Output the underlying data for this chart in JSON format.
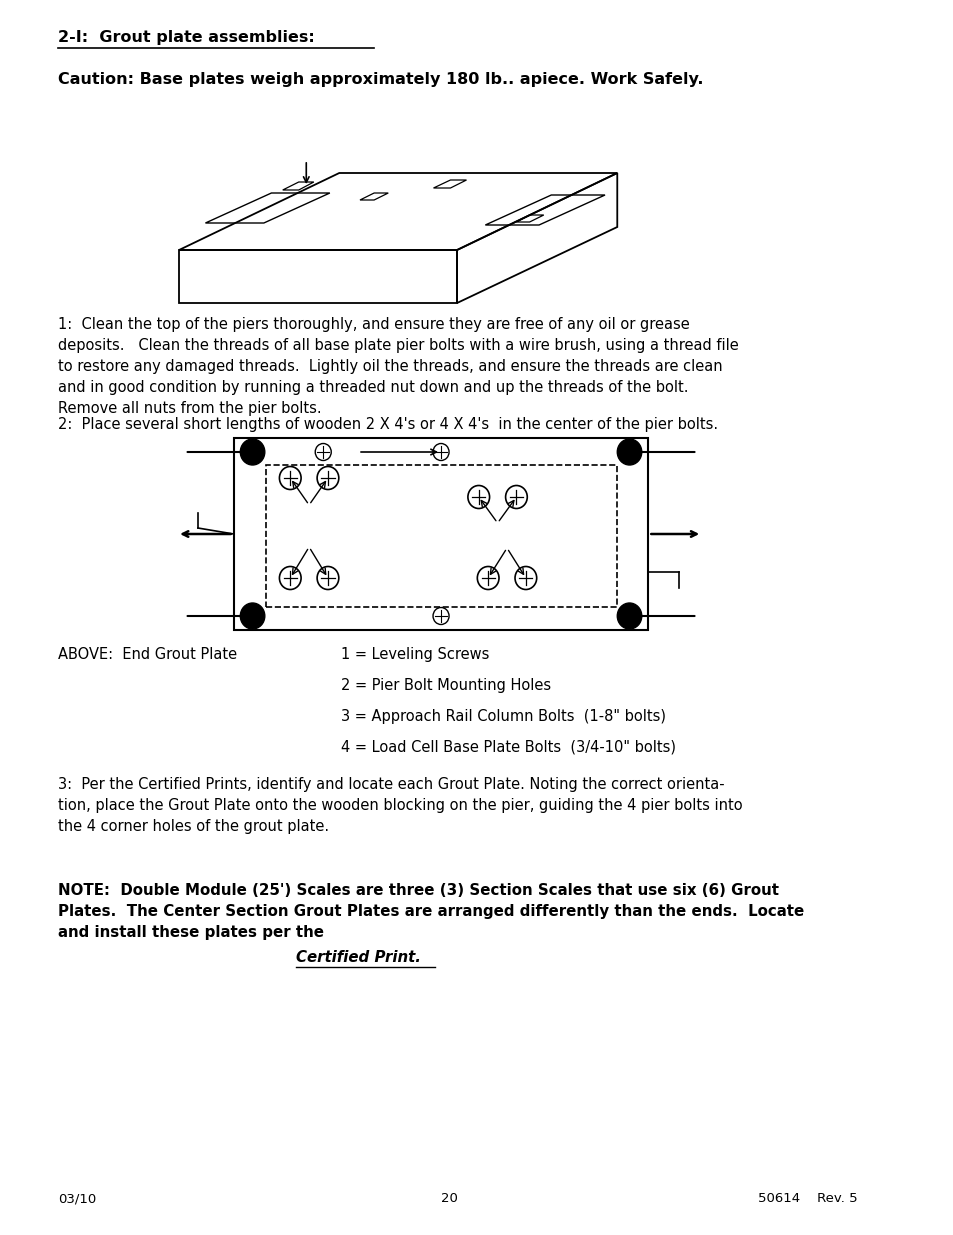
{
  "bg_color": "#ffffff",
  "text_color": "#000000",
  "heading1": "2-I:  Grout plate assemblies:",
  "caution": "Caution: Base plates weigh approximately 180 lb.. apiece. Work Safely.",
  "para1": "1:  Clean the top of the piers thoroughly, and ensure they are free of any oil or grease\ndeposits.   Clean the threads of all base plate pier bolts with a wire brush, using a thread file\nto restore any damaged threads.  Lightly oil the threads, and ensure the threads are clean\nand in good condition by running a threaded nut down and up the threads of the bolt.\nRemove all nuts from the pier bolts.",
  "para2": "2:  Place several short lengths of wooden 2 X 4's or 4 X 4's  in the center of the pier bolts.",
  "above_label": "ABOVE:  End Grout Plate",
  "legend_lines": [
    "1 = Leveling Screws",
    "2 = Pier Bolt Mounting Holes",
    "3 = Approach Rail Column Bolts  (1-8\" bolts)",
    "4 = Load Cell Base Plate Bolts  (3/4-10\" bolts)"
  ],
  "para3": "3:  Per the Certified Prints, identify and locate each Grout Plate. Noting the correct orienta-\ntion, place the Grout Plate onto the wooden blocking on the pier, guiding the 4 pier bolts into\nthe 4 corner holes of the grout plate.",
  "note_bold": "NOTE:  Double Module (25') Scales are three (3) Section Scales that use six (6) Grout\nPlates.  The Center Section Grout Plates are arranged differently than the ends.  Locate\nand install these plates per the ",
  "note_italic": "Certified Print.",
  "footer_left": "03/10",
  "footer_center": "20",
  "footer_right": "50614    Rev. 5"
}
